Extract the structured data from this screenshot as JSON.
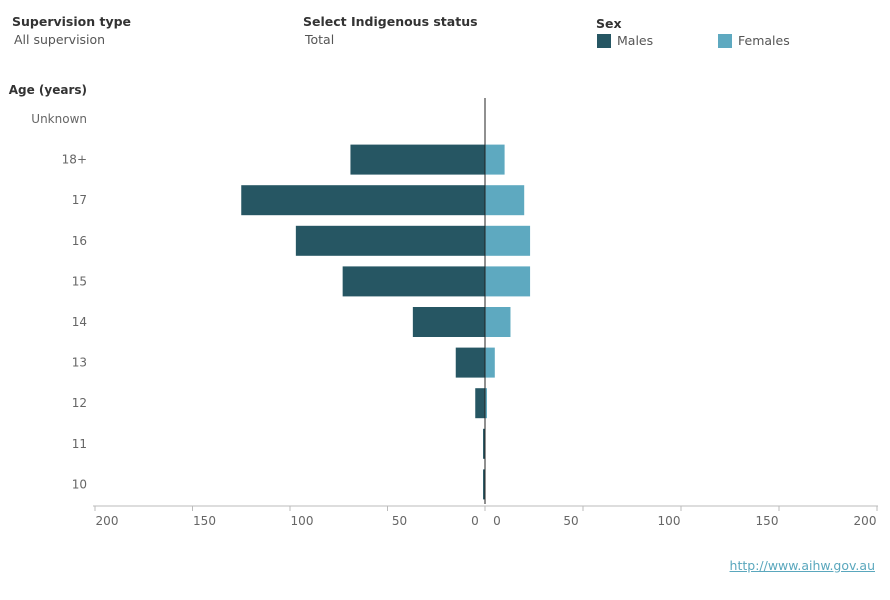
{
  "filters": {
    "supervision_type": {
      "title": "Supervision type",
      "value": "All supervision"
    },
    "indigenous_status": {
      "title": "Select Indigenous status",
      "value": "Total"
    }
  },
  "legend": {
    "title": "Sex",
    "items": [
      {
        "label": "Males",
        "color": "#265663"
      },
      {
        "label": "Females",
        "color": "#5ea9c0"
      }
    ]
  },
  "footer": {
    "link": "http://www.aihw.gov.au"
  },
  "chart_data": {
    "type": "bar",
    "orientation": "horizontal-butterfly",
    "ylabel": "Age (years)",
    "categories": [
      "Unknown",
      "18+",
      "17",
      "16",
      "15",
      "14",
      "13",
      "12",
      "11",
      "10"
    ],
    "series": [
      {
        "name": "Males",
        "color": "#265663",
        "values": [
          0,
          69,
          125,
          97,
          73,
          37,
          15,
          5,
          1,
          1
        ]
      },
      {
        "name": "Females",
        "color": "#5ea9c0",
        "values": [
          0,
          10,
          20,
          23,
          23,
          13,
          5,
          1,
          0,
          0
        ]
      }
    ],
    "xlim": [
      -200,
      200
    ],
    "xticks_left": [
      "200",
      "150",
      "100",
      "50",
      "0"
    ],
    "xticks_right": [
      "0",
      "50",
      "100",
      "150",
      "200"
    ]
  }
}
